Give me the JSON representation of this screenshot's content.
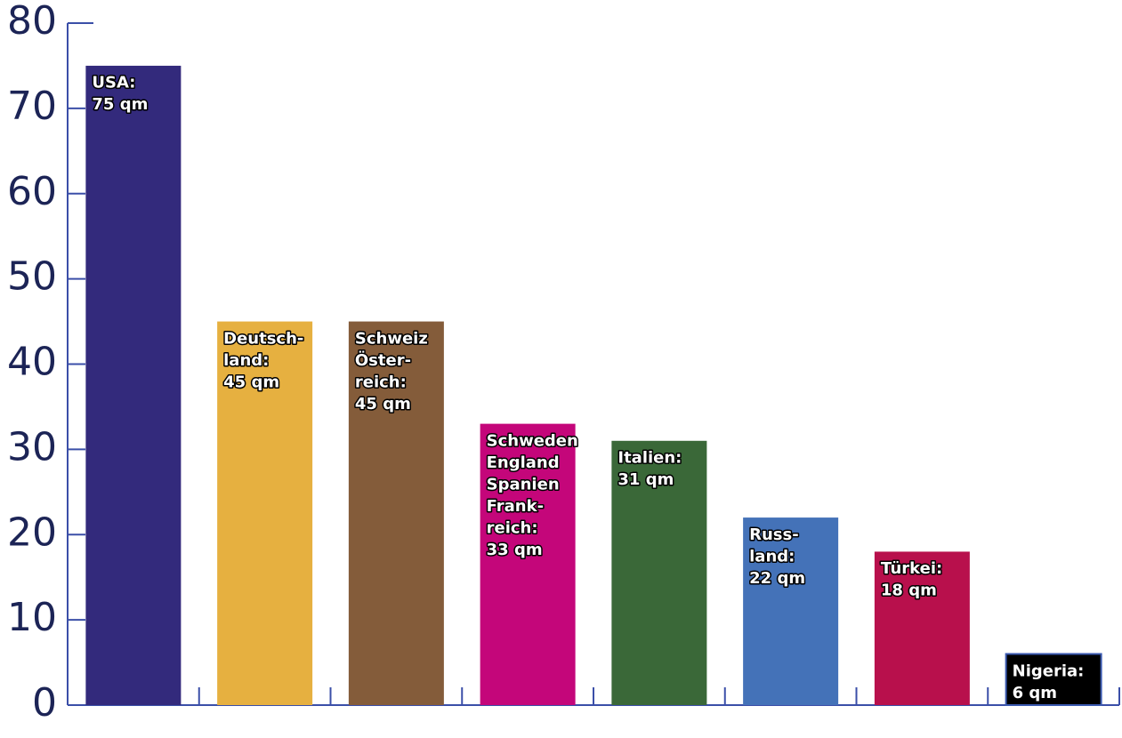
{
  "chart_data": {
    "type": "bar",
    "categories": [
      [
        "USA:"
      ],
      [
        "Deutsch-",
        "land:"
      ],
      [
        "Schweiz",
        "Öster-",
        "reich:"
      ],
      [
        "Schweden",
        "England",
        "Spanien",
        "Frank-",
        "reich:"
      ],
      [
        "Italien:"
      ],
      [
        "Russ-",
        "land:"
      ],
      [
        "Türkei:"
      ],
      [
        "Nigeria:"
      ]
    ],
    "values": [
      75,
      45,
      45,
      33,
      31,
      22,
      18,
      6
    ],
    "value_labels": [
      "75 qm",
      "45 qm",
      "45 qm",
      "33 qm",
      "31 qm",
      "22 qm",
      "18 qm",
      "6 qm"
    ],
    "colors": [
      "#332a7c",
      "#e6b040",
      "#845c3a",
      "#c4067a",
      "#3a6838",
      "#4472b8",
      "#b8104c",
      "#000000"
    ],
    "ylim": [
      0,
      80
    ],
    "yticks": [
      0,
      10,
      20,
      30,
      40,
      50,
      60,
      70,
      80
    ]
  }
}
